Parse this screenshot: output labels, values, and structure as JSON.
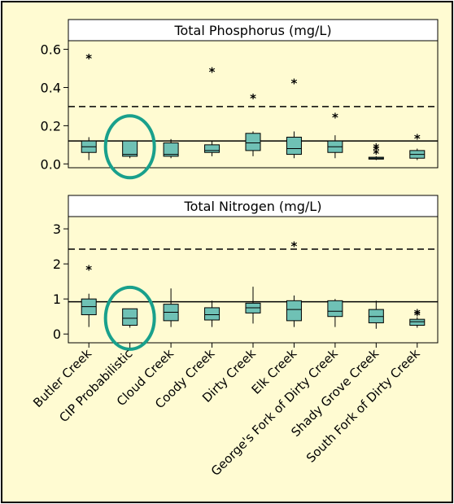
{
  "background_color": "#FFFBD2",
  "box_color": "#6FC1B5",
  "highlight_color": "#19A08C",
  "categories": [
    "Butler Creek",
    "CIP Probabilistic",
    "Cloud Creek",
    "Coody Creek",
    "Dirty Creek",
    "Elk Creek",
    "George's Fork of Dirty Creek",
    "Shady Grove Creek",
    "South Fork of Dirty Creek"
  ],
  "highlighted_category": "CIP Probabilistic",
  "chart_data": [
    {
      "type": "boxplot",
      "title": "Total Phosphorus (mg/L)",
      "ylim": [
        -0.02,
        0.645
      ],
      "yticks": [
        0.0,
        0.2,
        0.4,
        0.6
      ],
      "ytick_labels": [
        "0.0",
        "0.2",
        "0.4",
        "0.6"
      ],
      "reference_lines": [
        {
          "style": "dashed",
          "value": 0.3
        },
        {
          "style": "solid",
          "value": 0.12
        }
      ],
      "boxes": [
        {
          "category": "Butler Creek",
          "whisker_low": 0.02,
          "q1": 0.06,
          "median": 0.09,
          "q3": 0.12,
          "whisker_high": 0.14,
          "outliers": [
            0.56
          ]
        },
        {
          "category": "CIP Probabilistic",
          "whisker_low": 0.03,
          "q1": 0.04,
          "median": 0.05,
          "q3": 0.12,
          "whisker_high": 0.12,
          "outliers": []
        },
        {
          "category": "Cloud Creek",
          "whisker_low": 0.03,
          "q1": 0.04,
          "median": 0.05,
          "q3": 0.11,
          "whisker_high": 0.13,
          "outliers": []
        },
        {
          "category": "Coody Creek",
          "whisker_low": 0.04,
          "q1": 0.06,
          "median": 0.07,
          "q3": 0.1,
          "whisker_high": 0.12,
          "outliers": [
            0.49
          ]
        },
        {
          "category": "Dirty Creek",
          "whisker_low": 0.04,
          "q1": 0.07,
          "median": 0.11,
          "q3": 0.16,
          "whisker_high": 0.17,
          "outliers": [
            0.35
          ]
        },
        {
          "category": "Elk Creek",
          "whisker_low": 0.03,
          "q1": 0.05,
          "median": 0.08,
          "q3": 0.14,
          "whisker_high": 0.17,
          "outliers": [
            0.43
          ]
        },
        {
          "category": "George's Fork of Dirty Creek",
          "whisker_low": 0.03,
          "q1": 0.06,
          "median": 0.09,
          "q3": 0.12,
          "whisker_high": 0.15,
          "outliers": [
            0.25
          ]
        },
        {
          "category": "Shady Grove Creek",
          "whisker_low": 0.02,
          "q1": 0.025,
          "median": 0.03,
          "q3": 0.035,
          "whisker_high": 0.04,
          "outliers": [
            0.06,
            0.08,
            0.09
          ]
        },
        {
          "category": "South Fork of Dirty Creek",
          "whisker_low": 0.02,
          "q1": 0.03,
          "median": 0.05,
          "q3": 0.07,
          "whisker_high": 0.08,
          "outliers": [
            0.14
          ]
        }
      ]
    },
    {
      "type": "boxplot",
      "title": "Total Nitrogen (mg/L)",
      "ylim": [
        -0.25,
        3.35
      ],
      "yticks": [
        0,
        1,
        2,
        3
      ],
      "ytick_labels": [
        "0",
        "1",
        "2",
        "3"
      ],
      "reference_lines": [
        {
          "style": "dashed",
          "value": 2.42
        },
        {
          "style": "solid",
          "value": 0.92
        }
      ],
      "boxes": [
        {
          "category": "Butler Creek",
          "whisker_low": 0.2,
          "q1": 0.55,
          "median": 0.78,
          "q3": 1.0,
          "whisker_high": 1.15,
          "outliers": [
            1.88
          ]
        },
        {
          "category": "CIP Probabilistic",
          "whisker_low": 0.18,
          "q1": 0.25,
          "median": 0.45,
          "q3": 0.72,
          "whisker_high": 0.72,
          "outliers": []
        },
        {
          "category": "Cloud Creek",
          "whisker_low": 0.2,
          "q1": 0.38,
          "median": 0.62,
          "q3": 0.85,
          "whisker_high": 1.3,
          "outliers": []
        },
        {
          "category": "Coody Creek",
          "whisker_low": 0.2,
          "q1": 0.4,
          "median": 0.55,
          "q3": 0.75,
          "whisker_high": 0.95,
          "outliers": []
        },
        {
          "category": "Dirty Creek",
          "whisker_low": 0.3,
          "q1": 0.6,
          "median": 0.75,
          "q3": 0.88,
          "whisker_high": 1.35,
          "outliers": []
        },
        {
          "category": "Elk Creek",
          "whisker_low": 0.2,
          "q1": 0.38,
          "median": 0.7,
          "q3": 0.95,
          "whisker_high": 1.1,
          "outliers": [
            2.55
          ]
        },
        {
          "category": "George's Fork of Dirty Creek",
          "whisker_low": 0.2,
          "q1": 0.5,
          "median": 0.65,
          "q3": 0.95,
          "whisker_high": 1.0,
          "outliers": []
        },
        {
          "category": "Shady Grove Creek",
          "whisker_low": 0.15,
          "q1": 0.32,
          "median": 0.5,
          "q3": 0.7,
          "whisker_high": 0.95,
          "outliers": []
        },
        {
          "category": "South Fork of Dirty Creek",
          "whisker_low": 0.18,
          "q1": 0.25,
          "median": 0.35,
          "q3": 0.42,
          "whisker_high": 0.48,
          "outliers": [
            0.58,
            0.62
          ]
        }
      ]
    }
  ]
}
